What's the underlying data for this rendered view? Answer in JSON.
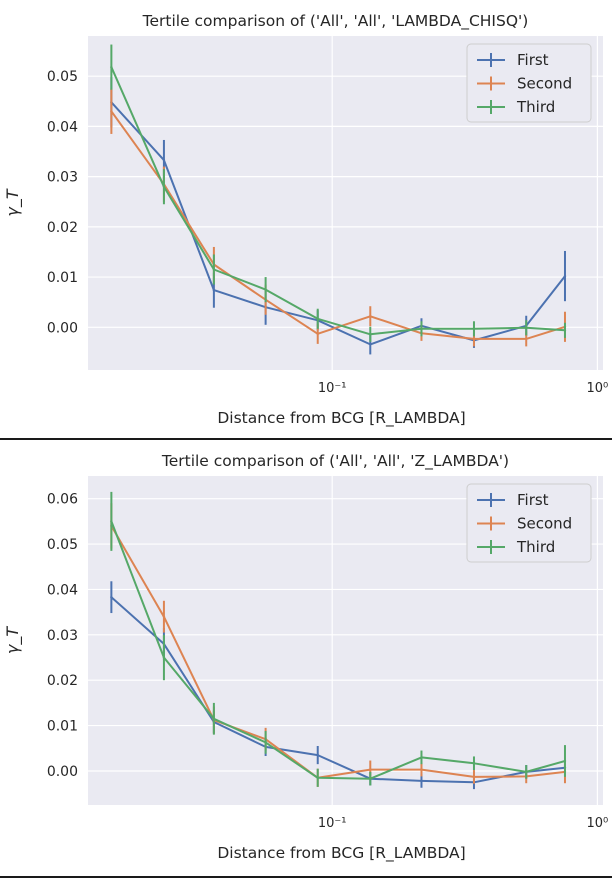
{
  "chart_data": [
    {
      "type": "line",
      "title": "Tertile comparison of ('All', 'All', 'LAMBDA_CHISQ')",
      "xlabel": "Distance from BCG [R_LAMBDA]",
      "ylabel": "γ_T",
      "xscale": "log",
      "xlim": [
        0.012,
        1.05
      ],
      "ylim": [
        -0.0085,
        0.058
      ],
      "x_ticks": [
        {
          "value": 0.1,
          "label": "10⁻¹"
        },
        {
          "value": 1,
          "label": "10⁰"
        }
      ],
      "y_ticks": [
        {
          "value": 0.0,
          "label": "0.00"
        },
        {
          "value": 0.01,
          "label": "0.01"
        },
        {
          "value": 0.02,
          "label": "0.02"
        },
        {
          "value": 0.03,
          "label": "0.03"
        },
        {
          "value": 0.04,
          "label": "0.04"
        },
        {
          "value": 0.05,
          "label": "0.05"
        }
      ],
      "grid": true,
      "legend_position": "top-right",
      "x": [
        0.0147,
        0.0232,
        0.0358,
        0.0561,
        0.0882,
        0.1392,
        0.2171,
        0.3425,
        0.5391,
        0.7548
      ],
      "series": [
        {
          "name": "First",
          "color": "#4c72b0",
          "values": [
            0.0448,
            0.0333,
            0.0074,
            0.004,
            0.0014,
            -0.0034,
            0.0003,
            -0.0026,
            0.0003,
            0.0102
          ],
          "errors": [
            0.005,
            0.004,
            0.0035,
            0.0035,
            0.002,
            0.002,
            0.0015,
            0.0015,
            0.002,
            0.005
          ]
        },
        {
          "name": "Second",
          "color": "#dd8452",
          "values": [
            0.043,
            0.0285,
            0.0125,
            0.0055,
            -0.0013,
            0.0022,
            -0.0012,
            -0.0023,
            -0.0023,
            0.0001
          ],
          "errors": [
            0.0045,
            0.0035,
            0.0035,
            0.003,
            0.002,
            0.002,
            0.0015,
            0.0015,
            0.0015,
            0.003
          ]
        },
        {
          "name": "Third",
          "color": "#55a868",
          "values": [
            0.0518,
            0.028,
            0.0115,
            0.0075,
            0.0017,
            -0.0014,
            -0.0003,
            -0.0003,
            -0.0001,
            -0.0006
          ],
          "errors": [
            0.0045,
            0.0035,
            0.003,
            0.0025,
            0.002,
            0.0015,
            0.0015,
            0.0015,
            0.0015,
            0.0015
          ]
        }
      ]
    },
    {
      "type": "line",
      "title": "Tertile comparison of ('All', 'All', 'Z_LAMBDA')",
      "xlabel": "Distance from BCG [R_LAMBDA]",
      "ylabel": "γ_T",
      "xscale": "log",
      "xlim": [
        0.012,
        1.05
      ],
      "ylim": [
        -0.0075,
        0.065
      ],
      "x_ticks": [
        {
          "value": 0.1,
          "label": "10⁻¹"
        },
        {
          "value": 1,
          "label": "10⁰"
        }
      ],
      "y_ticks": [
        {
          "value": 0.0,
          "label": "0.00"
        },
        {
          "value": 0.01,
          "label": "0.01"
        },
        {
          "value": 0.02,
          "label": "0.02"
        },
        {
          "value": 0.03,
          "label": "0.03"
        },
        {
          "value": 0.04,
          "label": "0.04"
        },
        {
          "value": 0.05,
          "label": "0.05"
        },
        {
          "value": 0.06,
          "label": "0.06"
        }
      ],
      "grid": true,
      "legend_position": "top-right",
      "x": [
        0.0147,
        0.0232,
        0.0358,
        0.0561,
        0.0882,
        0.1392,
        0.2171,
        0.3425,
        0.5391,
        0.7548
      ],
      "series": [
        {
          "name": "First",
          "color": "#4c72b0",
          "values": [
            0.0383,
            0.028,
            0.0108,
            0.0053,
            0.0035,
            -0.0017,
            -0.0022,
            -0.0025,
            -0.0002,
            0.0007
          ],
          "errors": [
            0.0035,
            0.0035,
            0.0025,
            0.002,
            0.002,
            0.0015,
            0.0015,
            0.0015,
            0.0015,
            0.0015
          ]
        },
        {
          "name": "Second",
          "color": "#dd8452",
          "values": [
            0.054,
            0.034,
            0.0112,
            0.007,
            -0.0015,
            0.0003,
            0.0003,
            -0.0013,
            -0.0012,
            -0.0002
          ],
          "errors": [
            0.005,
            0.0035,
            0.003,
            0.0025,
            0.002,
            0.002,
            0.0015,
            0.0015,
            0.0015,
            0.0025
          ]
        },
        {
          "name": "Third",
          "color": "#55a868",
          "values": [
            0.055,
            0.025,
            0.0115,
            0.0063,
            -0.0015,
            -0.0017,
            0.003,
            0.0017,
            -0.0002,
            0.0022
          ],
          "errors": [
            0.0065,
            0.005,
            0.0035,
            0.0025,
            0.002,
            0.0015,
            0.0015,
            0.0015,
            0.0015,
            0.0035
          ]
        }
      ]
    }
  ]
}
